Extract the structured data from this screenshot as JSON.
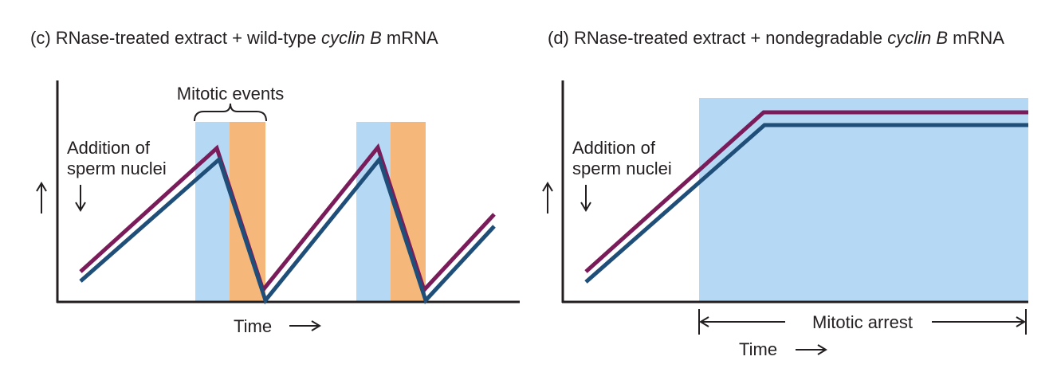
{
  "panel_c": {
    "label": "(c)",
    "title_prefix": "RNase-treated extract + wild-type ",
    "title_italic": "cyclin B",
    "title_suffix": " mRNA",
    "bracket_label": "Mitotic events",
    "annotation_line1": "Addition of",
    "annotation_line2": "sperm nuclei",
    "x_axis_label": "Time"
  },
  "panel_d": {
    "label": "(d)",
    "title_prefix": "RNase-treated extract + nondegradable ",
    "title_italic": "cyclin B",
    "title_suffix": " mRNA",
    "annotation_line1": "Addition of",
    "annotation_line2": "sperm nuclei",
    "interval_label": "Mitotic arrest",
    "x_axis_label": "Time"
  },
  "colors": {
    "purple_line": "#7a1b5a",
    "navy_line": "#1f4e79",
    "blue_shade": "#b5d8f4",
    "orange_shade": "#f5b77a",
    "axis": "#231f20"
  }
}
